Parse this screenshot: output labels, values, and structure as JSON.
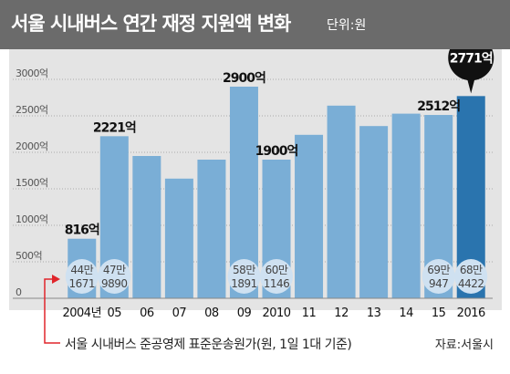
{
  "header": {
    "title": "서울 시내버스 연간 재정 지원액 변화",
    "unit": "단위:원"
  },
  "footnote": "서울 시내버스 준공영제 표준운송원가(원, 1일 1대 기준)",
  "source": "자료:서울시",
  "colors": {
    "header_bg": "#6b6b6b",
    "bar": "#7aaed6",
    "bar_highlight": "#2a74ae",
    "panel_bg": "#e4e4e4",
    "bubble": "#cfe1f1",
    "arrow": "#e0252b",
    "callout": "#111111"
  },
  "chart_data": {
    "type": "bar",
    "categories": [
      "2004년",
      "05",
      "06",
      "07",
      "08",
      "09",
      "2010",
      "11",
      "12",
      "13",
      "14",
      "15",
      "2016"
    ],
    "values": [
      816,
      2221,
      1950,
      1640,
      1900,
      2900,
      1900,
      2240,
      2640,
      2360,
      2530,
      2512,
      2771
    ],
    "ylim": [
      0,
      3000
    ],
    "yticks": [
      {
        "value": 0,
        "label": "0"
      },
      {
        "value": 500,
        "label": "500억"
      },
      {
        "value": 1000,
        "label": "1000억"
      },
      {
        "value": 1500,
        "label": "1500억"
      },
      {
        "value": 2000,
        "label": "2000억"
      },
      {
        "value": 2500,
        "label": "2500억"
      },
      {
        "value": 3000,
        "label": "3000억"
      }
    ],
    "data_labels": [
      {
        "index": 0,
        "text": "816억"
      },
      {
        "index": 1,
        "text": "2221억"
      },
      {
        "index": 5,
        "text": "2900억"
      },
      {
        "index": 6,
        "text": "1900억"
      },
      {
        "index": 11,
        "text": "2512억"
      }
    ],
    "highlight": {
      "index": 12,
      "text": "2771억"
    },
    "cost_labels": [
      {
        "index": 0,
        "line1": "44만",
        "line2": "1671"
      },
      {
        "index": 1,
        "line1": "47만",
        "line2": "9890"
      },
      {
        "index": 5,
        "line1": "58만",
        "line2": "1891"
      },
      {
        "index": 6,
        "line1": "60만",
        "line2": "1146"
      },
      {
        "index": 11,
        "line1": "69만",
        "line2": "947"
      },
      {
        "index": 12,
        "line1": "68만",
        "line2": "4422"
      }
    ],
    "grid": true
  }
}
